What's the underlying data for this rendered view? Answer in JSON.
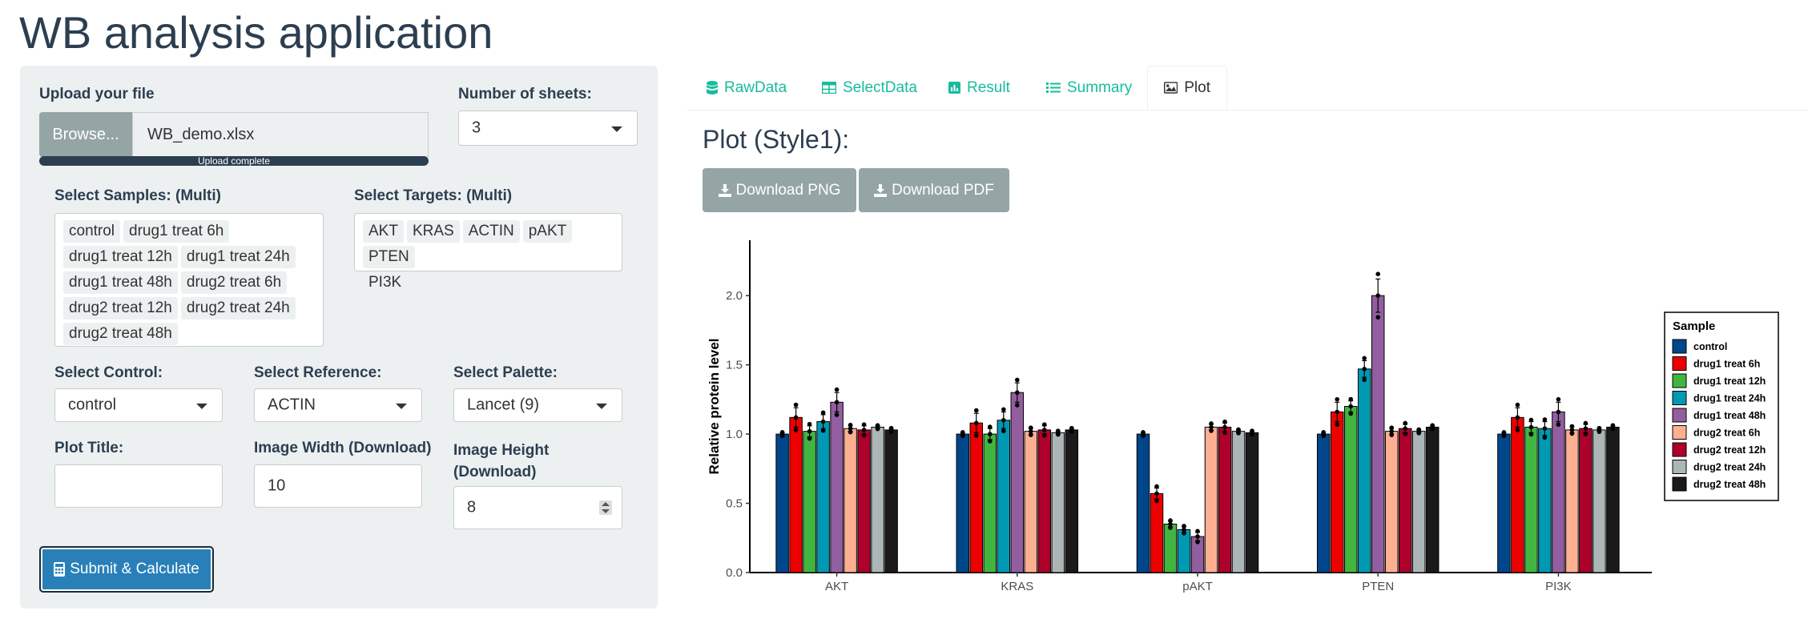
{
  "app": {
    "title": "WB analysis application"
  },
  "upload": {
    "label": "Upload your file",
    "browse_label": "Browse...",
    "filename": "WB_demo.xlsx",
    "progress_text": "Upload complete"
  },
  "sheets": {
    "label": "Number of sheets:",
    "value": "3"
  },
  "samples": {
    "label": "Select Samples: (Multi)",
    "items": [
      "control",
      "drug1 treat 6h",
      "drug1 treat 12h",
      "drug1 treat 24h",
      "drug1 treat 48h",
      "drug2 treat 6h",
      "drug2 treat 12h",
      "drug2 treat 24h",
      "drug2 treat 48h"
    ]
  },
  "targets": {
    "label": "Select Targets: (Multi)",
    "items": [
      "AKT",
      "KRAS",
      "ACTIN",
      "pAKT",
      "PTEN",
      "PI3K"
    ]
  },
  "control": {
    "label": "Select Control:",
    "value": "control"
  },
  "reference": {
    "label": "Select Reference:",
    "value": "ACTIN"
  },
  "palette": {
    "label": "Select Palette:",
    "value": "Lancet (9)"
  },
  "plot_title": {
    "label": "Plot Title:",
    "value": ""
  },
  "image_width": {
    "label": "Image Width (Download)",
    "value": "10"
  },
  "image_height": {
    "label_line1": "Image Height",
    "label_line2": "(Download)",
    "value": "8"
  },
  "submit": {
    "label": "Submit & Calculate"
  },
  "tabs": [
    {
      "label": "RawData",
      "icon": "database-icon"
    },
    {
      "label": "SelectData",
      "icon": "table-icon"
    },
    {
      "label": "Result",
      "icon": "bar-chart-icon"
    },
    {
      "label": "Summary",
      "icon": "list-icon"
    },
    {
      "label": "Plot",
      "icon": "image-icon",
      "active": true
    }
  ],
  "plot": {
    "heading": "Plot (Style1):",
    "download_png": "Download PNG",
    "download_pdf": "Download PDF"
  },
  "chart_data": {
    "type": "bar",
    "title": "",
    "xlabel": "",
    "ylabel": "Relative protein level",
    "categories": [
      "AKT",
      "KRAS",
      "pAKT",
      "PTEN",
      "PI3K"
    ],
    "ylim": [
      0,
      2.4
    ],
    "yticks": [
      "0.0",
      "0.5",
      "1.0",
      "1.5",
      "2.0"
    ],
    "grid": false,
    "legend": {
      "title": "Sample",
      "position": "right"
    },
    "series": [
      {
        "name": "control",
        "color": "#00468B",
        "values": [
          1.0,
          1.0,
          1.0,
          1.0,
          1.0
        ],
        "errors": [
          0.01,
          0.01,
          0.01,
          0.01,
          0.01
        ]
      },
      {
        "name": "drug1 treat 6h",
        "color": "#ED0000",
        "values": [
          1.12,
          1.08,
          0.57,
          1.16,
          1.12
        ],
        "errors": [
          0.07,
          0.07,
          0.04,
          0.07,
          0.07
        ]
      },
      {
        "name": "drug1 treat 12h",
        "color": "#42B540",
        "values": [
          1.02,
          1.0,
          0.35,
          1.2,
          1.05
        ],
        "errors": [
          0.04,
          0.04,
          0.02,
          0.04,
          0.04
        ]
      },
      {
        "name": "drug1 treat 24h",
        "color": "#0099B4",
        "values": [
          1.09,
          1.1,
          0.31,
          1.47,
          1.04
        ],
        "errors": [
          0.05,
          0.06,
          0.02,
          0.06,
          0.05
        ]
      },
      {
        "name": "drug1 treat 48h",
        "color": "#925E9F",
        "values": [
          1.23,
          1.3,
          0.26,
          2.0,
          1.16
        ],
        "errors": [
          0.07,
          0.07,
          0.03,
          0.12,
          0.07
        ]
      },
      {
        "name": "drug2 treat 6h",
        "color": "#FDAF91",
        "values": [
          1.04,
          1.02,
          1.05,
          1.02,
          1.03
        ],
        "errors": [
          0.02,
          0.02,
          0.02,
          0.02,
          0.02
        ]
      },
      {
        "name": "drug2 treat 12h",
        "color": "#AD002A",
        "values": [
          1.03,
          1.03,
          1.05,
          1.04,
          1.04
        ],
        "errors": [
          0.03,
          0.03,
          0.03,
          0.03,
          0.03
        ]
      },
      {
        "name": "drug2 treat 24h",
        "color": "#ADB6B6",
        "values": [
          1.05,
          1.01,
          1.02,
          1.02,
          1.03
        ],
        "errors": [
          0.01,
          0.01,
          0.01,
          0.01,
          0.01
        ]
      },
      {
        "name": "drug2 treat 48h",
        "color": "#1B1919",
        "values": [
          1.03,
          1.03,
          1.01,
          1.05,
          1.05
        ],
        "errors": [
          0.01,
          0.01,
          0.01,
          0.01,
          0.01
        ]
      }
    ]
  }
}
